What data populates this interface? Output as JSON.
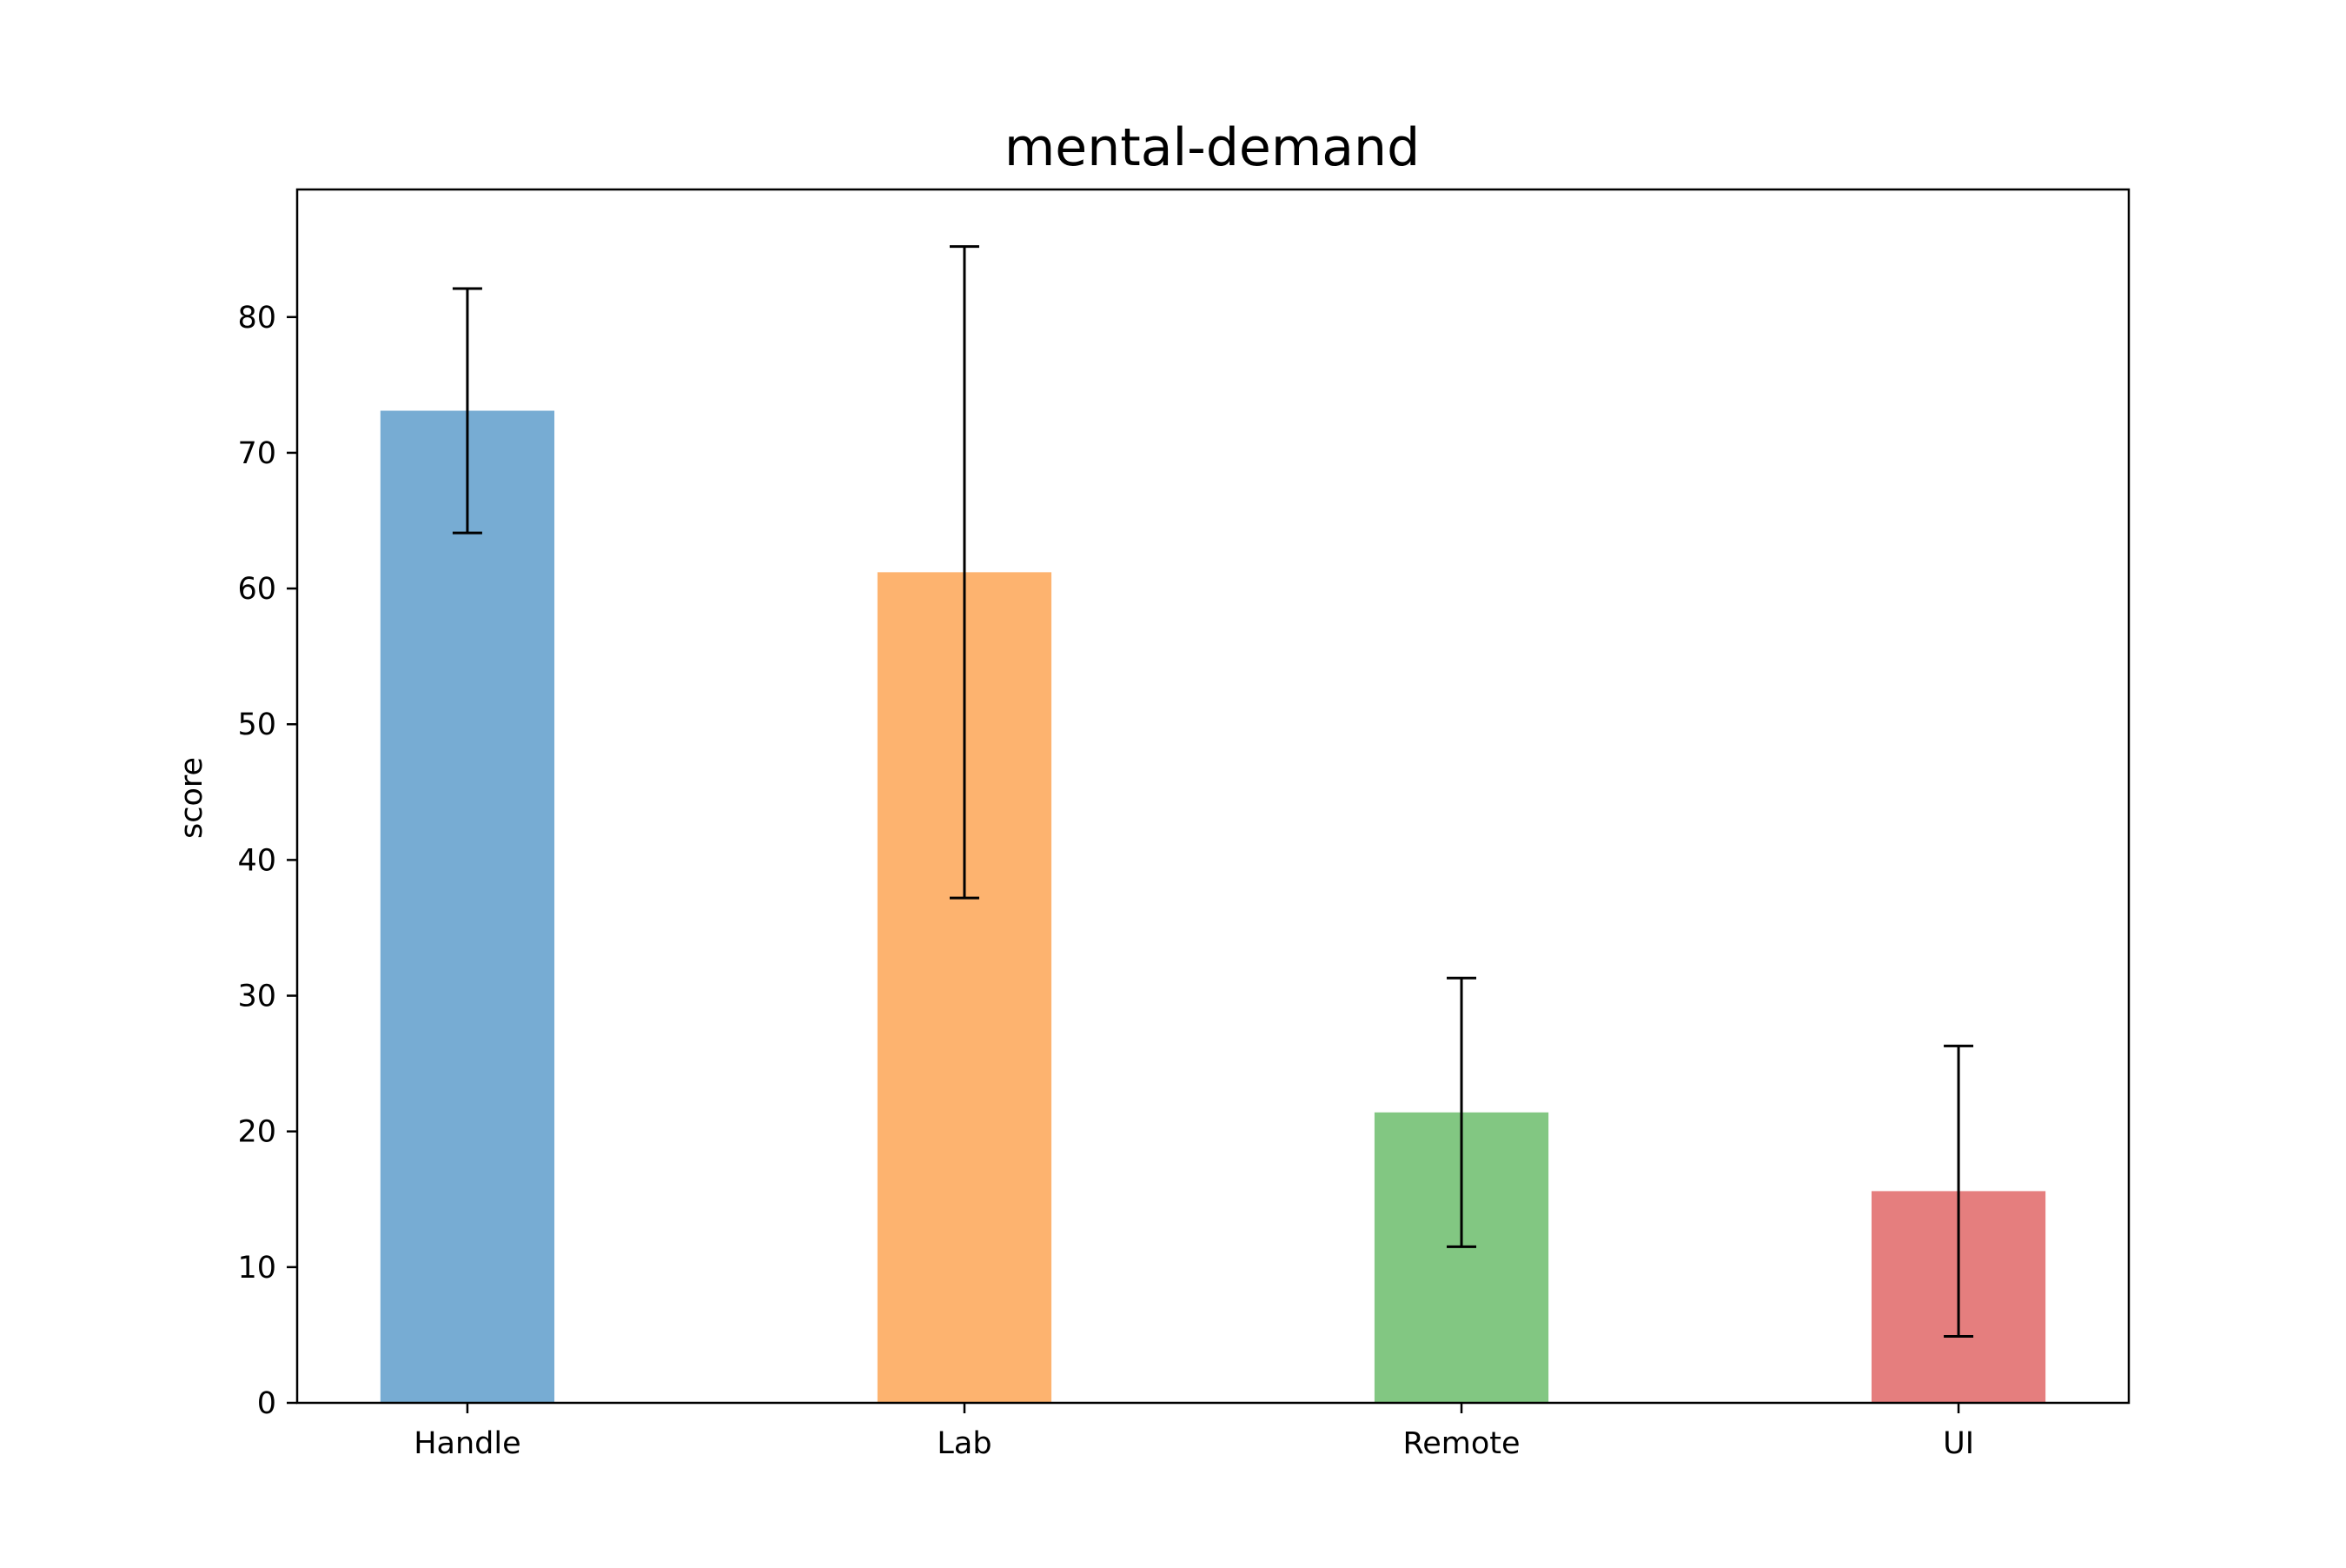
{
  "chart_data": {
    "type": "bar",
    "title": "mental-demand",
    "xlabel": "",
    "ylabel": "score",
    "categories": [
      "Handle",
      "Lab",
      "Remote",
      "UI"
    ],
    "values": [
      73.1,
      61.2,
      21.4,
      15.6
    ],
    "errors": [
      9.0,
      24.0,
      9.9,
      10.7
    ],
    "colors": [
      "#77acd3",
      "#fdb36f",
      "#82c782",
      "#e57e7e"
    ],
    "error_color": "#000000",
    "ylim": [
      0,
      89.4
    ],
    "yticks": [
      0,
      10,
      20,
      30,
      40,
      50,
      60,
      70,
      80
    ],
    "ytick_labels": [
      "0",
      "10",
      "20",
      "30",
      "40",
      "50",
      "60",
      "70",
      "80"
    ],
    "grid": false,
    "legend": "none"
  }
}
